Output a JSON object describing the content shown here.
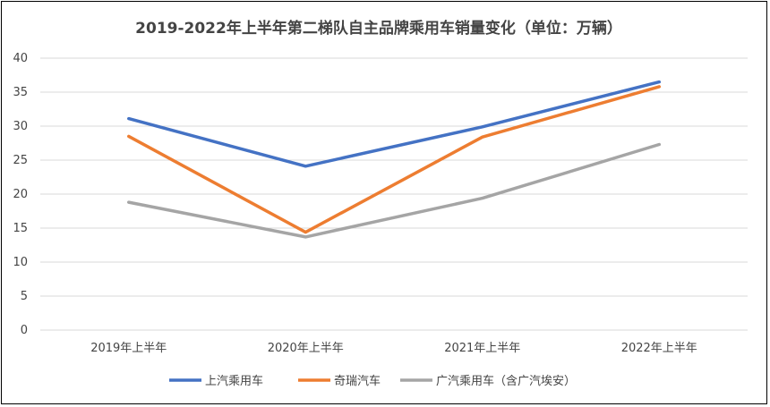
{
  "chart_data": {
    "type": "line",
    "title": "2019-2022年上半年第二梯队自主品牌乘用车销量变化（单位：万辆）",
    "categories": [
      "2019年上半年",
      "2020年上半年",
      "2021年上半年",
      "2022年上半年"
    ],
    "ylim": [
      0,
      40
    ],
    "yticks": [
      0,
      5,
      10,
      15,
      20,
      25,
      30,
      35,
      40
    ],
    "grid": true,
    "legend_position": "bottom",
    "series": [
      {
        "name": "上汽乘用车",
        "color": "#4472C4",
        "values": [
          31.1,
          24.1,
          29.9,
          36.5
        ]
      },
      {
        "name": "奇瑞汽车",
        "color": "#ED7D31",
        "values": [
          28.5,
          14.4,
          28.4,
          35.8
        ]
      },
      {
        "name": "广汽乘用车（含广汽埃安）",
        "color": "#A5A5A5",
        "values": [
          18.8,
          13.7,
          19.4,
          27.3
        ]
      }
    ]
  }
}
